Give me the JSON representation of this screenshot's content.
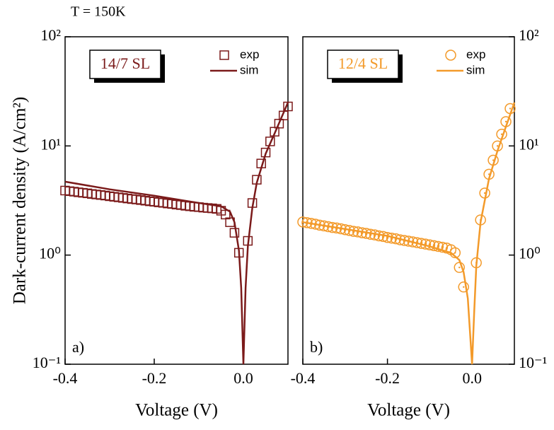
{
  "chart_data": [
    {
      "type": "line",
      "title": "T = 150K",
      "ylabel": "Dark-current density (A/cm²)",
      "xlabel": "Voltage (V)",
      "panel_label": "14/7 SL",
      "corner_label": "a)",
      "log_y": true,
      "y_axis_side": "left",
      "legend": "upper right",
      "xlim": [
        -0.4,
        0.1
      ],
      "xticks": [
        -0.4,
        -0.2,
        {
          "value": 0,
          "label": "0.0"
        }
      ],
      "ylim": [
        0.1,
        100
      ],
      "yticks": [
        {
          "value": 0.1,
          "label": "10⁻¹"
        },
        {
          "value": 1,
          "label": "10⁰"
        },
        {
          "value": 10,
          "label": "10¹"
        },
        {
          "value": 100,
          "label": "10²"
        }
      ],
      "series": [
        {
          "name": "exp",
          "color": "#7b1a1a",
          "marker": "square",
          "x": [
            -0.4,
            -0.39,
            -0.38,
            -0.37,
            -0.36,
            -0.35,
            -0.34,
            -0.33,
            -0.32,
            -0.31,
            -0.3,
            -0.29,
            -0.28,
            -0.27,
            -0.26,
            -0.25,
            -0.24,
            -0.23,
            -0.22,
            -0.21,
            -0.2,
            -0.19,
            -0.18,
            -0.17,
            -0.16,
            -0.15,
            -0.14,
            -0.13,
            -0.12,
            -0.11,
            -0.1,
            -0.09,
            -0.08,
            -0.07,
            -0.06,
            -0.05,
            -0.04,
            -0.03,
            -0.02,
            -0.01,
            0.01,
            0.02,
            0.03,
            0.04,
            0.05,
            0.06,
            0.07,
            0.08,
            0.09,
            0.1
          ],
          "values": [
            3.9,
            3.85,
            3.81,
            3.76,
            3.72,
            3.68,
            3.63,
            3.59,
            3.55,
            3.51,
            3.46,
            3.42,
            3.38,
            3.34,
            3.3,
            3.26,
            3.23,
            3.19,
            3.15,
            3.11,
            3.08,
            3.04,
            3.01,
            2.97,
            2.94,
            2.9,
            2.87,
            2.83,
            2.8,
            2.77,
            2.75,
            2.72,
            2.7,
            2.68,
            2.65,
            2.55,
            2.35,
            2.0,
            1.6,
            1.05,
            1.35,
            3.0,
            4.9,
            6.9,
            8.7,
            11,
            13.5,
            16,
            19,
            23
          ]
        },
        {
          "name": "sim",
          "color": "#7b1a1a",
          "x": [
            -0.4,
            -0.3,
            -0.2,
            -0.1,
            -0.05,
            -0.03,
            -0.02,
            -0.01,
            -0.005,
            0,
            0.005,
            0.01,
            0.02,
            0.03,
            0.05,
            0.07,
            0.1
          ],
          "values": [
            4.7,
            4.0,
            3.5,
            3.0,
            2.8,
            2.5,
            2.0,
            1.1,
            0.5,
            0.1,
            0.5,
            1.2,
            2.7,
            4.6,
            8.5,
            13,
            25
          ]
        }
      ]
    },
    {
      "type": "line",
      "xlabel": "Voltage (V)",
      "panel_label": "12/4 SL",
      "corner_label": "b)",
      "log_y": true,
      "y_axis_side": "right",
      "legend": "upper right",
      "xlim": [
        -0.4,
        0.1
      ],
      "xticks": [
        -0.4,
        -0.2,
        {
          "value": 0,
          "label": "0.0"
        }
      ],
      "ylim": [
        0.1,
        100
      ],
      "yticks": [
        {
          "value": 0.1,
          "label": "10⁻¹"
        },
        {
          "value": 1,
          "label": "10⁰"
        },
        {
          "value": 10,
          "label": "10¹"
        },
        {
          "value": 100,
          "label": "10²"
        }
      ],
      "series": [
        {
          "name": "exp",
          "color": "#f39a2a",
          "marker": "circle",
          "x": [
            -0.4,
            -0.39,
            -0.38,
            -0.37,
            -0.36,
            -0.35,
            -0.34,
            -0.33,
            -0.32,
            -0.31,
            -0.3,
            -0.29,
            -0.28,
            -0.27,
            -0.26,
            -0.25,
            -0.24,
            -0.23,
            -0.22,
            -0.21,
            -0.2,
            -0.19,
            -0.18,
            -0.17,
            -0.16,
            -0.15,
            -0.14,
            -0.13,
            -0.12,
            -0.11,
            -0.1,
            -0.09,
            -0.08,
            -0.07,
            -0.06,
            -0.05,
            -0.04,
            -0.03,
            -0.02,
            0.01,
            0.02,
            0.03,
            0.04,
            0.05,
            0.06,
            0.07,
            0.08,
            0.09
          ],
          "values": [
            2.01,
            1.98,
            1.95,
            1.92,
            1.88,
            1.85,
            1.82,
            1.79,
            1.77,
            1.74,
            1.71,
            1.68,
            1.65,
            1.63,
            1.6,
            1.58,
            1.55,
            1.53,
            1.5,
            1.48,
            1.45,
            1.43,
            1.41,
            1.38,
            1.36,
            1.34,
            1.32,
            1.3,
            1.28,
            1.26,
            1.24,
            1.22,
            1.2,
            1.18,
            1.16,
            1.12,
            1.05,
            0.77,
            0.51,
            0.85,
            2.1,
            3.7,
            5.5,
            7.4,
            10,
            12.8,
            16.7,
            22
          ]
        },
        {
          "name": "sim",
          "color": "#f39a2a",
          "x": [
            -0.4,
            -0.2,
            -0.1,
            -0.05,
            -0.03,
            -0.02,
            -0.01,
            -0.005,
            0,
            0.005,
            0.01,
            0.02,
            0.04,
            0.06,
            0.08,
            0.1
          ],
          "values": [
            2.0,
            1.5,
            1.2,
            1.05,
            0.9,
            0.7,
            0.4,
            0.2,
            0.1,
            0.3,
            0.8,
            2.0,
            5.0,
            9,
            15,
            25
          ]
        }
      ]
    }
  ]
}
